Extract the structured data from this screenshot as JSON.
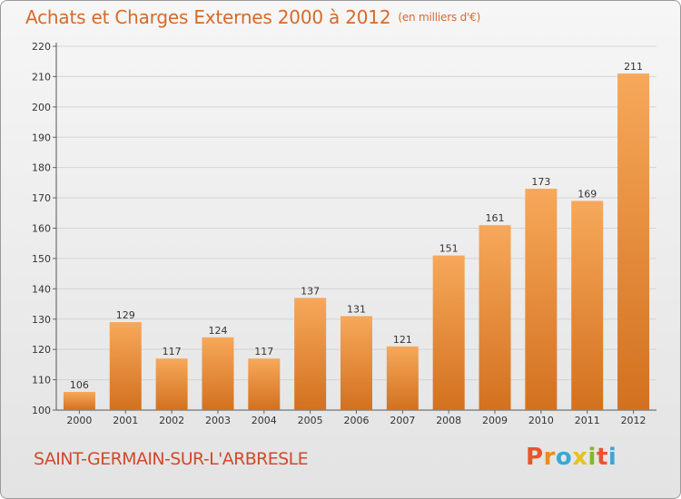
{
  "chart_data": {
    "type": "bar",
    "title": "Achats et Charges Externes 2000 à 2012",
    "subtitle": "(en milliers d'€)",
    "categories": [
      "2000",
      "2001",
      "2002",
      "2003",
      "2004",
      "2005",
      "2006",
      "2007",
      "2008",
      "2009",
      "2010",
      "2011",
      "2012"
    ],
    "values": [
      106,
      129,
      117,
      124,
      117,
      137,
      131,
      121,
      151,
      161,
      173,
      169,
      211
    ],
    "ylim": [
      100,
      220
    ],
    "yticks": [
      100,
      110,
      120,
      130,
      140,
      150,
      160,
      170,
      180,
      190,
      200,
      210,
      220
    ],
    "grid": true,
    "bar_color_top": "#f7a85a",
    "bar_color_bottom": "#d2711f"
  },
  "footer": {
    "commune": "SAINT-GERMAIN-SUR-L'ARBRESLE",
    "logo_letters": [
      "P",
      "r",
      "o",
      "x",
      "i",
      "t",
      "i"
    ],
    "logo_colors": [
      "#e8542c",
      "#f08a1c",
      "#3aa7d8",
      "#e6c21c",
      "#7fba2a",
      "#e8542c",
      "#3aa7d8"
    ]
  }
}
